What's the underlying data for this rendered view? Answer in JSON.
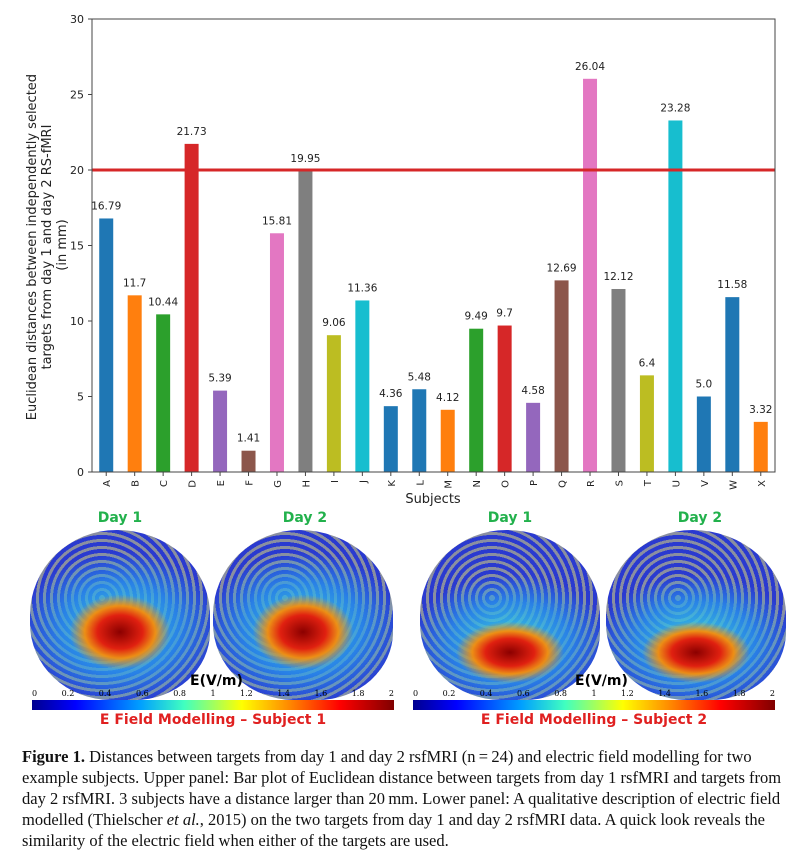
{
  "chart_data": {
    "type": "bar",
    "title": "",
    "xlabel": "Subjects",
    "ylabel": "Euclidean distances between independently selected targets from day 1 and day 2 RS-fMRI (in mm)",
    "ylabel_lines": [
      "Euclidean distances between independently selected",
      "targets from day 1 and day 2 RS-fMRI",
      "(in mm)"
    ],
    "ylim": [
      0,
      30
    ],
    "yticks": [
      0,
      5,
      10,
      15,
      20,
      25,
      30
    ],
    "categories": [
      "A",
      "B",
      "C",
      "D",
      "E",
      "F",
      "G",
      "H",
      "I",
      "J",
      "K",
      "L",
      "M",
      "N",
      "O",
      "P",
      "Q",
      "R",
      "S",
      "T",
      "U",
      "V",
      "W",
      "X"
    ],
    "values": [
      16.79,
      11.7,
      10.44,
      21.73,
      5.39,
      1.41,
      15.81,
      19.95,
      9.06,
      11.36,
      4.36,
      5.48,
      4.12,
      9.49,
      9.7,
      4.58,
      12.69,
      26.04,
      12.12,
      6.4,
      23.28,
      5.0,
      11.58,
      3.32
    ],
    "labels": [
      "16.79",
      "11.7",
      "10.44",
      "21.73",
      "5.39",
      "1.41",
      "15.81",
      "19.95",
      "9.06",
      "11.36",
      "4.36",
      "5.48",
      "4.12",
      "9.49",
      "9.7",
      "4.58",
      "12.69",
      "26.04",
      "12.12",
      "6.4",
      "23.28",
      "5.0",
      "11.58",
      "3.32"
    ],
    "colors": [
      "#1f77b4",
      "#ff7f0e",
      "#2ca02c",
      "#d62728",
      "#9467bd",
      "#8c564b",
      "#e377c2",
      "#7f7f7f",
      "#bcbd22",
      "#17becf",
      "#1f77b4",
      "#1f77b4",
      "#ff7f0e",
      "#2ca02c",
      "#d62728",
      "#9467bd",
      "#8c564b",
      "#e377c2",
      "#7f7f7f",
      "#bcbd22",
      "#17becf",
      "#1f77b4",
      "#1f77b4",
      "#ff7f0e"
    ],
    "threshold": {
      "value": 20,
      "color": "#d62728"
    },
    "grid": false
  },
  "panels": [
    {
      "day1": "Day 1",
      "day2": "Day 2",
      "unit": "E(V/m)",
      "ticks": [
        "0",
        "0.2",
        "0.4",
        "0.6",
        "0.8",
        "1",
        "1.2",
        "1.4",
        "1.6",
        "1.8",
        "2"
      ],
      "title": "E Field Modelling – Subject 1"
    },
    {
      "day1": "Day 1",
      "day2": "Day 2",
      "unit": "E(V/m)",
      "ticks": [
        "0",
        "0.2",
        "0.4",
        "0.6",
        "0.8",
        "1",
        "1.2",
        "1.4",
        "1.6",
        "1.8",
        "2"
      ],
      "title": "E Field Modelling – Subject 2"
    }
  ],
  "caption": {
    "label": "Figure 1.",
    "text": " Distances between targets from day 1 and day 2 rsfMRI (n = 24) and electric field modelling for two example subjects. Upper panel: Bar plot of Euclidean distance between targets from day 1 rsfMRI and targets from day 2 rsfMRI. 3 subjects have a distance larger than 20 mm. Lower panel: A qualitative description of electric field modelled (Thielscher ",
    "etal": "et al.",
    "text2": ", 2015) on the two targets from day 1 and day 2 rsfMRI data. A quick look reveals the similarity of the electric field when either of the targets are used."
  }
}
